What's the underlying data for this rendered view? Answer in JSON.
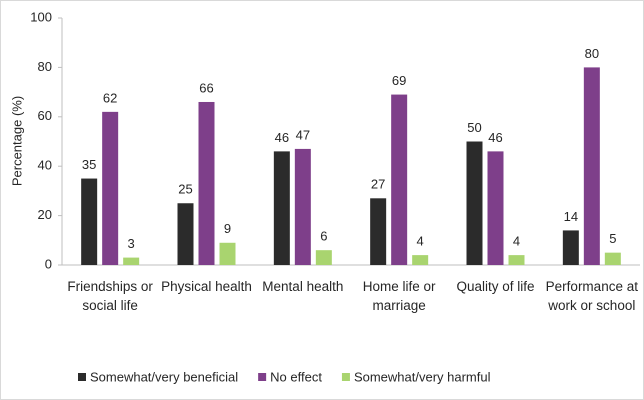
{
  "chart_data": {
    "type": "bar",
    "y_label": "Percentage (%)",
    "categories": [
      "Friendships or social life",
      "Physical health",
      "Mental health",
      "Home life or marriage",
      "Quality of life",
      "Performance at work or school"
    ],
    "series": [
      {
        "name": "Somewhat/very beneficial",
        "color": "#2b2b2b",
        "values": [
          35,
          25,
          46,
          27,
          50,
          14
        ]
      },
      {
        "name": "No effect",
        "color": "#7e3f8a",
        "values": [
          62,
          66,
          47,
          69,
          46,
          80
        ]
      },
      {
        "name": "Somewhat/very harmful",
        "color": "#a9d46f",
        "values": [
          3,
          9,
          6,
          4,
          4,
          5
        ]
      }
    ],
    "ylim": [
      0,
      100
    ],
    "yticks": [
      0,
      20,
      40,
      60,
      80,
      100
    ],
    "grid": false
  }
}
